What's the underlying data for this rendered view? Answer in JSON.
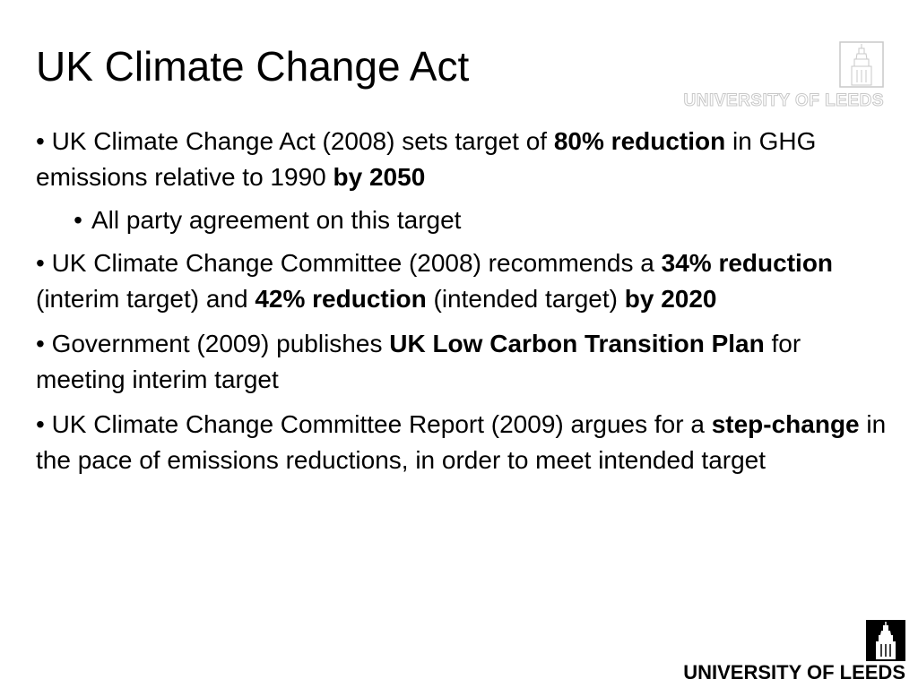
{
  "slide": {
    "title": "UK Climate Change Act",
    "logo_wordmark": "UNIVERSITY OF LEEDS",
    "bullets": [
      {
        "level": 1,
        "segments": [
          {
            "text": "• UK Climate Change Act (2008) sets target of ",
            "bold": false
          },
          {
            "text": "80% reduction",
            "bold": true
          },
          {
            "text": " in GHG emissions relative to 1990 ",
            "bold": false
          },
          {
            "text": "by 2050",
            "bold": true
          }
        ]
      },
      {
        "level": 2,
        "marker": "•",
        "segments": [
          {
            "text": "All party agreement on this target",
            "bold": false
          }
        ]
      },
      {
        "level": 1,
        "segments": [
          {
            "text": "• UK Climate Change Committee (2008) recommends a ",
            "bold": false
          },
          {
            "text": "34% reduction",
            "bold": true
          },
          {
            "text": " (interim target) and ",
            "bold": false
          },
          {
            "text": "42% reduction",
            "bold": true
          },
          {
            "text": " (intended target) ",
            "bold": false
          },
          {
            "text": "by 2020",
            "bold": true
          }
        ]
      },
      {
        "level": 1,
        "segments": [
          {
            "text": "• Government (2009) publishes ",
            "bold": false
          },
          {
            "text": "UK Low Carbon Transition Plan",
            "bold": true
          },
          {
            "text": " for meeting interim target",
            "bold": false
          }
        ]
      },
      {
        "level": 1,
        "segments": [
          {
            "text": "• UK Climate Change Committee Report (2009) argues for a ",
            "bold": false
          },
          {
            "text": "step-change",
            "bold": true
          },
          {
            "text": " in the pace of emissions reductions, in order to meet intended target",
            "bold": false
          }
        ]
      }
    ]
  },
  "colors": {
    "background": "#ffffff",
    "text": "#000000",
    "watermark_outline": "#c8c8c8"
  },
  "icons": {
    "top_logo": "university-of-leeds-crest-outline-icon",
    "bottom_logo": "university-of-leeds-crest-icon"
  }
}
